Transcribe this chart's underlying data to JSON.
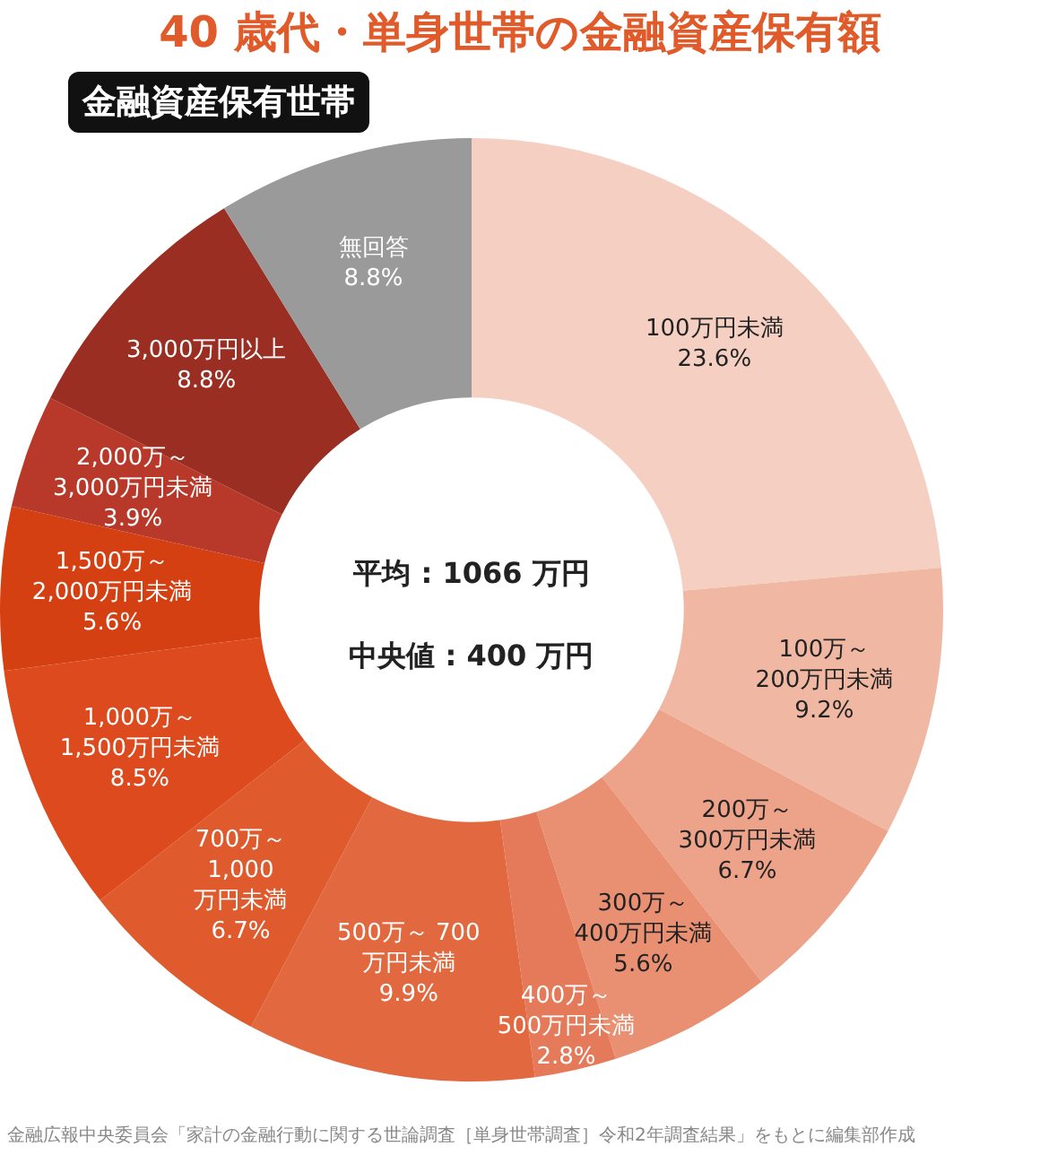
{
  "chart_data": {
    "type": "donut",
    "title": "40 歳代・単身世帯の金融資産保有額",
    "subtitle": "金融資産保有世帯",
    "categories": [
      "100万円未満",
      "100万～ 200万円未満",
      "200万～ 300万円未満",
      "300万～ 400万円未満",
      "400万～ 500万円未満",
      "500万～ 700 万円未満",
      "700万～ 1,000 万円未満",
      "1,000万～ 1,500万円未満",
      "1,500万～ 2,000万円未満",
      "2,000万～ 3,000万円未満",
      "3,000万円以上",
      "無回答"
    ],
    "values": [
      23.6,
      9.2,
      6.7,
      5.6,
      2.8,
      9.9,
      6.7,
      8.5,
      5.6,
      3.9,
      8.8,
      8.8
    ],
    "colors": [
      "#f5d0c2",
      "#f0b8a2",
      "#eda28a",
      "#e98f72",
      "#e57a5a",
      "#e2693f",
      "#df5a2c",
      "#dc4a1e",
      "#d44012",
      "#b8392a",
      "#9a2e22",
      "#9a9a9a"
    ],
    "value_labels": [
      "23.6%",
      "9.2%",
      "6.7%",
      "5.6%",
      "2.8%",
      "9.9%",
      "6.7%",
      "8.5%",
      "5.6%",
      "3.9%",
      "8.8%",
      "8.8%"
    ],
    "legend": false,
    "annotations": [
      "平均 : 1066 万円",
      "中央値 : 400 万円",
      "金融広報中央委員会「家計の金融行動に関する世論調査［単身世帯調査］令和2年調査結果」をもとに編集部作成"
    ]
  }
}
